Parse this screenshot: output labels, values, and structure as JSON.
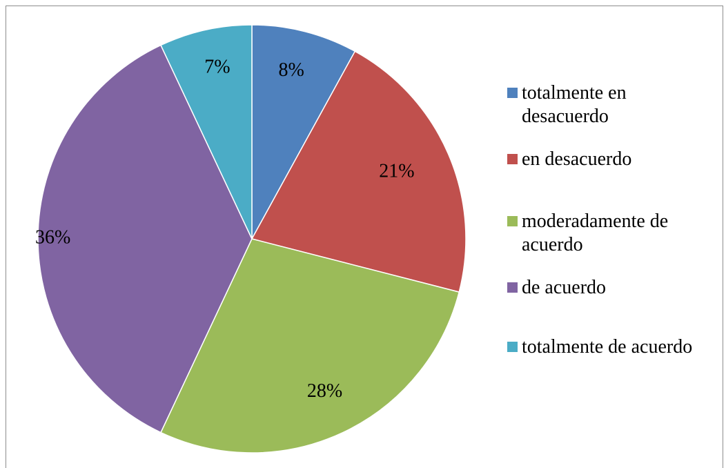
{
  "chart_data": {
    "type": "pie",
    "categories": [
      "totalmente en desacuerdo",
      "en desacuerdo",
      "moderadamente de acuerdo",
      "de acuerdo",
      "totalmente de acuerdo"
    ],
    "values": [
      8,
      21,
      28,
      36,
      7
    ],
    "value_labels": [
      "8%",
      "21%",
      "28%",
      "36%",
      "7%"
    ],
    "colors": [
      "#4f81bd",
      "#c0504d",
      "#9bbb59",
      "#8064a2",
      "#4bacc6"
    ],
    "legend": {
      "placement": "right",
      "entries": [
        "totalmente en desacuerdo",
        "en desacuerdo",
        "moderadamente de acuerdo",
        "de acuerdo",
        "totalmente de acuerdo"
      ]
    },
    "start_angle_deg": 0,
    "direction": "clockwise"
  }
}
